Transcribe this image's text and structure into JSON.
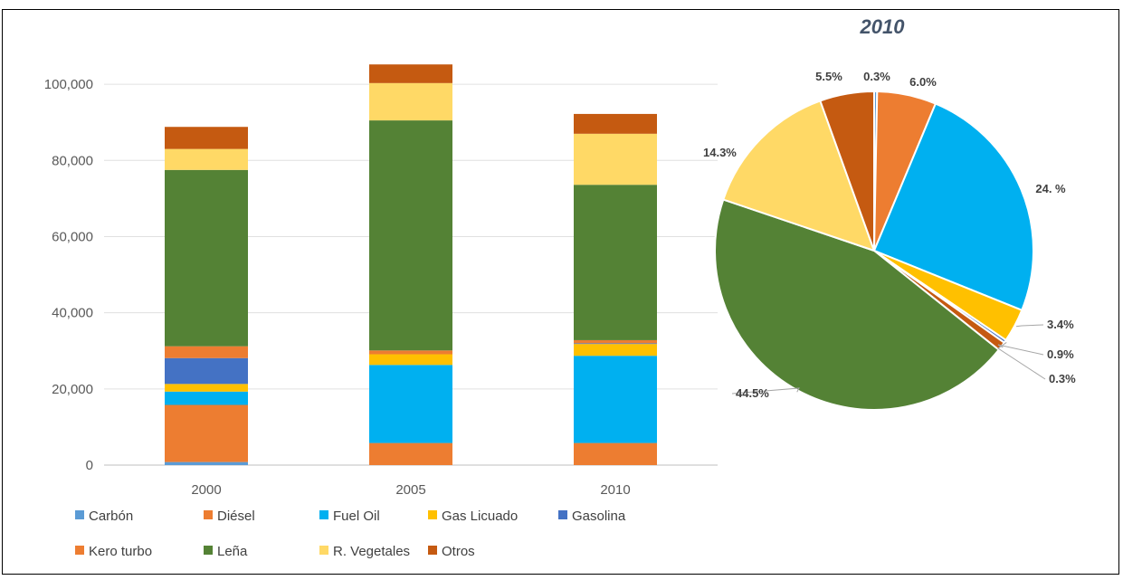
{
  "chart_data": [
    {
      "type": "bar",
      "stacked": true,
      "title": "",
      "xlabel": "",
      "ylabel": "",
      "categories": [
        "2000",
        "2005",
        "2010"
      ],
      "ylim": [
        0,
        110000
      ],
      "yticks": [
        0,
        20000,
        40000,
        60000,
        80000,
        100000
      ],
      "ytick_labels": [
        "0",
        "20,000",
        "40,000",
        "60,000",
        "80,000",
        "100,000"
      ],
      "grid": true,
      "legend_position": "bottom",
      "series": [
        {
          "name": "Carbón",
          "color": "#5b9bd5",
          "values": [
            800,
            0,
            0
          ]
        },
        {
          "name": "Diésel",
          "color": "#ed7d31",
          "values": [
            15000,
            5800,
            5800
          ]
        },
        {
          "name": "Fuel Oil",
          "color": "#00b0f0",
          "values": [
            3500,
            20500,
            22900
          ]
        },
        {
          "name": "Gas Licuado",
          "color": "#ffc000",
          "values": [
            2000,
            2800,
            3100
          ]
        },
        {
          "name": "Gasolina",
          "color": "#4472c4",
          "values": [
            6800,
            0,
            200
          ]
        },
        {
          "name": "Kero turbo",
          "color": "#ed7d31",
          "values": [
            3100,
            1000,
            800
          ]
        },
        {
          "name": "Leña",
          "color": "#548235",
          "values": [
            46300,
            60400,
            40800
          ]
        },
        {
          "name": "R. Vegetales",
          "color": "#ffd966",
          "values": [
            5500,
            9800,
            13400
          ]
        },
        {
          "name": "Otros",
          "color": "#c55a11",
          "values": [
            5800,
            4900,
            5200
          ]
        }
      ]
    },
    {
      "type": "pie",
      "title": "2010",
      "slices": [
        {
          "label": "0.3%",
          "value": 0.3,
          "color": "#5b9bd5"
        },
        {
          "label": "6.0%",
          "value": 6.0,
          "color": "#ed7d31"
        },
        {
          "label": "24.  %",
          "value": 24.8,
          "color": "#00b0f0"
        },
        {
          "label": "3.4%",
          "value": 3.4,
          "color": "#ffc000"
        },
        {
          "label": "0.3%",
          "value": 0.3,
          "color": "#4472c4"
        },
        {
          "label": "0.9%",
          "value": 0.9,
          "color": "#c55a11"
        },
        {
          "label": "44.5%",
          "value": 44.5,
          "color": "#548235"
        },
        {
          "label": "14.3%",
          "value": 14.3,
          "color": "#ffd966"
        },
        {
          "label": "5.5%",
          "value": 5.5,
          "color": "#c55a11"
        }
      ]
    }
  ]
}
